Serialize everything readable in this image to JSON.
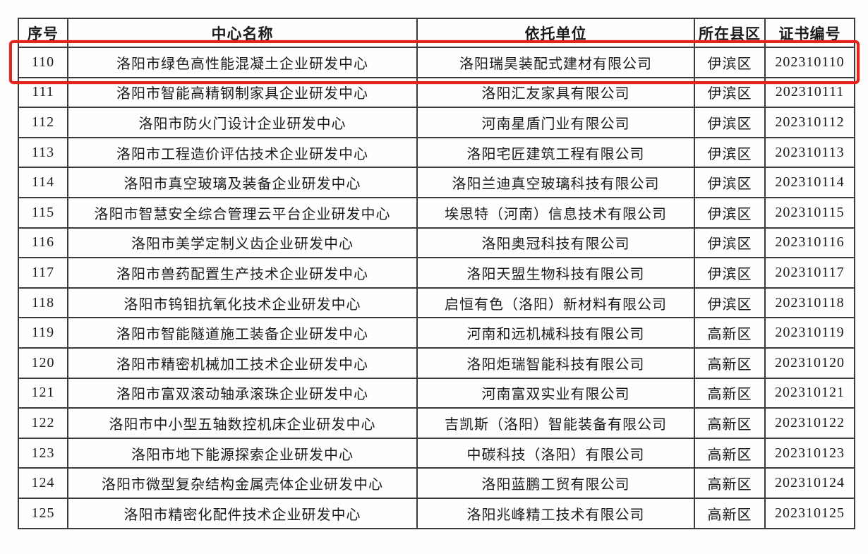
{
  "table": {
    "headers": [
      "序号",
      "中心名称",
      "依托单位",
      "所在县区",
      "证书编号"
    ],
    "rows": [
      {
        "no": "110",
        "center": "洛阳市绿色高性能混凝土企业研发中心",
        "org": "洛阳瑞昊装配式建材有限公司",
        "district": "伊滨区",
        "cert": "202310110",
        "highlighted": true
      },
      {
        "no": "111",
        "center": "洛阳市智能高精钢制家具企业研发中心",
        "org": "洛阳汇友家具有限公司",
        "district": "伊滨区",
        "cert": "202310111",
        "highlighted": false
      },
      {
        "no": "112",
        "center": "洛阳市防火门设计企业研发中心",
        "org": "河南星盾门业有限公司",
        "district": "伊滨区",
        "cert": "202310112",
        "highlighted": false
      },
      {
        "no": "113",
        "center": "洛阳市工程造价评估技术企业研发中心",
        "org": "洛阳宅匠建筑工程有限公司",
        "district": "伊滨区",
        "cert": "202310113",
        "highlighted": false
      },
      {
        "no": "114",
        "center": "洛阳市真空玻璃及装备企业研发中心",
        "org": "洛阳兰迪真空玻璃科技有限公司",
        "district": "伊滨区",
        "cert": "202310114",
        "highlighted": false
      },
      {
        "no": "115",
        "center": "洛阳市智慧安全综合管理云平台企业研发中心",
        "org": "埃思特（河南）信息技术有限公司",
        "district": "伊滨区",
        "cert": "202310115",
        "highlighted": false
      },
      {
        "no": "116",
        "center": "洛阳市美学定制义齿企业研发中心",
        "org": "洛阳奥冠科技有限公司",
        "district": "伊滨区",
        "cert": "202310116",
        "highlighted": false
      },
      {
        "no": "117",
        "center": "洛阳市兽药配置生产技术企业研发中心",
        "org": "洛阳天盟生物科技有限公司",
        "district": "伊滨区",
        "cert": "202310117",
        "highlighted": false
      },
      {
        "no": "118",
        "center": "洛阳市钨钼抗氧化技术企业研发中心",
        "org": "启恒有色（洛阳）新材料有限公司",
        "district": "伊滨区",
        "cert": "202310118",
        "highlighted": false
      },
      {
        "no": "119",
        "center": "洛阳市智能隧道施工装备企业研发中心",
        "org": "河南和远机械科技有限公司",
        "district": "高新区",
        "cert": "202310119",
        "highlighted": false
      },
      {
        "no": "120",
        "center": "洛阳市精密机械加工技术企业研发中心",
        "org": "洛阳炬瑞智能科技有限公司",
        "district": "高新区",
        "cert": "202310120",
        "highlighted": false
      },
      {
        "no": "121",
        "center": "洛阳市富双滚动轴承滚珠企业研发中心",
        "org": "河南富双实业有限公司",
        "district": "高新区",
        "cert": "202310121",
        "highlighted": false
      },
      {
        "no": "122",
        "center": "洛阳市中小型五轴数控机床企业研发中心",
        "org": "吉凯斯（洛阳）智能装备有限公司",
        "district": "高新区",
        "cert": "202310122",
        "highlighted": false
      },
      {
        "no": "123",
        "center": "洛阳市地下能源探索企业研发中心",
        "org": "中碳科技（洛阳）有限公司",
        "district": "高新区",
        "cert": "202310123",
        "highlighted": false
      },
      {
        "no": "124",
        "center": "洛阳市微型复杂结构金属壳体企业研发中心",
        "org": "洛阳蓝鹏工贸有限公司",
        "district": "高新区",
        "cert": "202310124",
        "highlighted": false
      },
      {
        "no": "125",
        "center": "洛阳市精密化配件技术企业研发中心",
        "org": "洛阳兆峰精工技术有限公司",
        "district": "高新区",
        "cert": "202310125",
        "highlighted": false
      }
    ]
  },
  "colors": {
    "highlight_border": "#e1251b",
    "table_border": "#3b3b3b",
    "text": "#1b1b1b",
    "background": "#ffffff"
  }
}
